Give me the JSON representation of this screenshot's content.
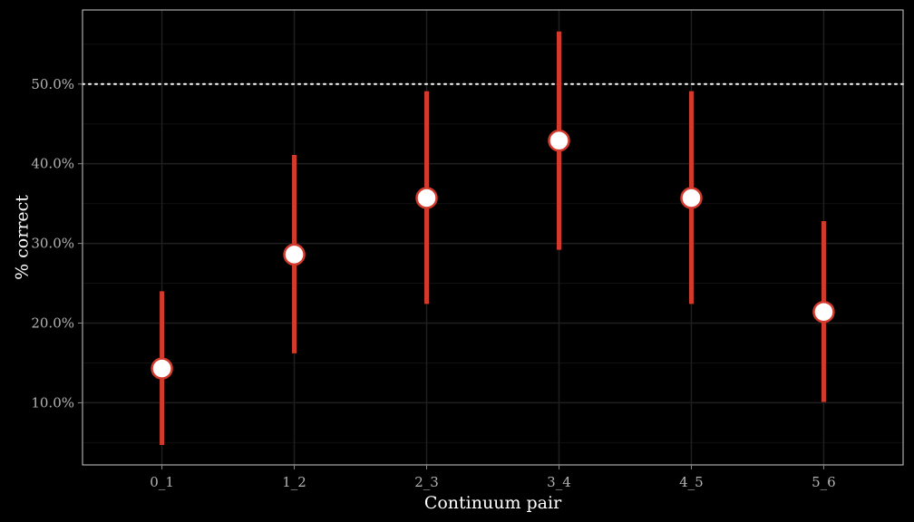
{
  "chart_data": {
    "type": "scatter",
    "title": "",
    "xlabel": "Continuum pair",
    "ylabel": "% correct",
    "categories": [
      "0_1",
      "1_2",
      "2_3",
      "3_4",
      "4_5",
      "5_6"
    ],
    "series": [
      {
        "values": [
          0.143,
          0.286,
          0.357,
          0.429,
          0.357,
          0.214
        ],
        "lower": [
          0.047,
          0.162,
          0.224,
          0.292,
          0.224,
          0.101
        ],
        "upper": [
          0.24,
          0.411,
          0.491,
          0.566,
          0.491,
          0.328
        ]
      }
    ],
    "ylim": [
      0.022,
      0.593
    ],
    "yticks": [
      0.1,
      0.2,
      0.3,
      0.4,
      0.5
    ],
    "ytick_labels": [
      "10.0%",
      "20.0%",
      "30.0%",
      "40.0%",
      "50.0%"
    ],
    "reference_line": {
      "y": 0.5,
      "style": "dotted"
    },
    "grid": true,
    "legend": "none",
    "colors": {
      "background": "#000000",
      "panel_border": "#cccccc",
      "grid_major": "#1f1f1f",
      "grid_minor": "#111111",
      "errorbar": "#d33a2c",
      "point_fill": "#ffffff",
      "point_stroke": "#d33a2c",
      "reference_line": "#ffffff"
    }
  }
}
